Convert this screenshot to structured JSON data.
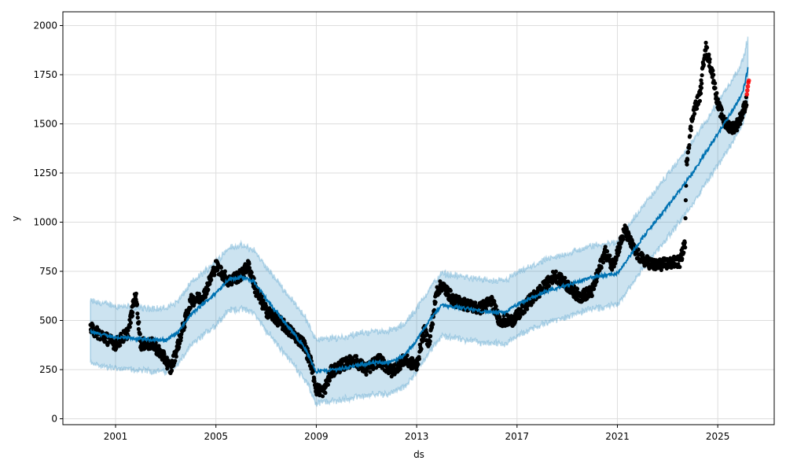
{
  "chart_data": {
    "type": "line",
    "title": "",
    "xlabel": "ds",
    "ylabel": "y",
    "xlim": [
      1998.9,
      2027.25
    ],
    "ylim": [
      -30,
      2070
    ],
    "grid": true,
    "x_ticks": [
      2001,
      2005,
      2009,
      2013,
      2017,
      2021,
      2025
    ],
    "x_tick_labels": [
      "2001",
      "2005",
      "2009",
      "2013",
      "2017",
      "2021",
      "2025"
    ],
    "y_ticks": [
      0,
      250,
      500,
      750,
      1000,
      1250,
      1500,
      1750,
      2000
    ],
    "y_tick_labels": [
      "0",
      "250",
      "500",
      "750",
      "1000",
      "1250",
      "1500",
      "1750",
      "2000"
    ],
    "colors": {
      "observed": "#000000",
      "forecast_points": "#ff0000",
      "yhat": "#0072B2",
      "interval": "#0072B2"
    },
    "series": [
      {
        "name": "yhat",
        "x": [
          2000.0,
          2001,
          2002,
          2003,
          2003.5,
          2004,
          2005,
          2005.5,
          2006,
          2006.5,
          2007,
          2008,
          2008.5,
          2009,
          2010,
          2011,
          2012,
          2012.5,
          2013,
          2013.5,
          2014,
          2015,
          2016,
          2016.5,
          2017,
          2018,
          2019,
          2020,
          2021,
          2021.5,
          2022,
          2023,
          2024,
          2025,
          2025.5,
          2026,
          2026.2
        ],
        "y": [
          440,
          415,
          405,
          400,
          440,
          530,
          640,
          710,
          720,
          700,
          610,
          450,
          370,
          240,
          255,
          280,
          290,
          320,
          400,
          500,
          580,
          560,
          540,
          540,
          580,
          640,
          680,
          720,
          740,
          830,
          920,
          1080,
          1250,
          1450,
          1550,
          1660,
          1780
        ]
      },
      {
        "name": "interval_half_width",
        "value": 160
      },
      {
        "name": "observed",
        "x": [
          2000,
          2000.5,
          2001,
          2001.5,
          2001.8,
          2002,
          2002.5,
          2003,
          2003.2,
          2003.5,
          2004,
          2004.5,
          2005,
          2005.5,
          2006,
          2006.3,
          2006.6,
          2007,
          2007.5,
          2008,
          2008.5,
          2008.8,
          2009,
          2009.3,
          2009.6,
          2010,
          2010.5,
          2011,
          2011.5,
          2012,
          2012.5,
          2013,
          2013.3,
          2013.5,
          2013.8,
          2014,
          2014.5,
          2015,
          2015.5,
          2016,
          2016.3,
          2016.8,
          2017,
          2017.5,
          2018,
          2018.5,
          2019,
          2019.5,
          2020,
          2020.5,
          2020.8,
          2021,
          2021.3,
          2021.7,
          2022,
          2022.5,
          2023,
          2023.5,
          2023.7,
          2023.75,
          2024,
          2024.3,
          2024.5,
          2024.8,
          2025,
          2025.3,
          2025.6,
          2025.8,
          2026.0,
          2026.15
        ],
        "y": [
          460,
          420,
          380,
          440,
          640,
          380,
          380,
          300,
          250,
          380,
          600,
          620,
          780,
          700,
          730,
          780,
          650,
          550,
          500,
          440,
          380,
          280,
          150,
          140,
          240,
          270,
          300,
          250,
          300,
          240,
          300,
          270,
          450,
          380,
          650,
          680,
          600,
          580,
          560,
          600,
          500,
          500,
          520,
          600,
          660,
          730,
          680,
          620,
          650,
          850,
          780,
          850,
          960,
          850,
          810,
          780,
          790,
          800,
          900,
          1300,
          1550,
          1650,
          1900,
          1750,
          1600,
          1500,
          1480,
          1500,
          1560,
          1620
        ]
      },
      {
        "name": "forecast_points",
        "x": [
          2026.16,
          2026.18,
          2026.2,
          2026.22,
          2026.24
        ],
        "y": [
          1650,
          1670,
          1690,
          1710,
          1720
        ]
      }
    ]
  }
}
